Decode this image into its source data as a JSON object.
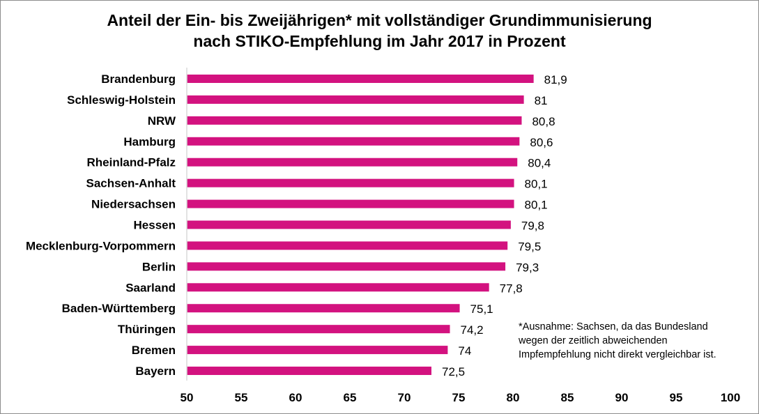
{
  "chart_data": {
    "type": "bar",
    "orientation": "horizontal",
    "title_lines": [
      "Anteil der Ein- bis Zweijährigen* mit vollständiger Grundimmunisierung",
      "nach STIKO-Empfehlung im Jahr 2017 in Prozent"
    ],
    "categories": [
      "Brandenburg",
      "Schleswig-Holstein",
      "NRW",
      "Hamburg",
      "Rheinland-Pfalz",
      "Sachsen-Anhalt",
      "Niedersachsen",
      "Hessen",
      "Mecklenburg-Vorpommern",
      "Berlin",
      "Saarland",
      "Baden-Württemberg",
      "Thüringen",
      "Bremen",
      "Bayern"
    ],
    "values": [
      81.9,
      81,
      80.8,
      80.6,
      80.4,
      80.1,
      80.1,
      79.8,
      79.5,
      79.3,
      77.8,
      75.1,
      74.2,
      74,
      72.5
    ],
    "value_labels": [
      "81,9",
      "81",
      "80,8",
      "80,6",
      "80,4",
      "80,1",
      "80,1",
      "79,8",
      "79,5",
      "79,3",
      "77,8",
      "75,1",
      "74,2",
      "74",
      "72,5"
    ],
    "xlim": [
      50,
      100
    ],
    "x_ticks": [
      "50",
      "55",
      "60",
      "65",
      "70",
      "75",
      "80",
      "85",
      "90",
      "95",
      "100"
    ],
    "xlabel": "",
    "ylabel": "",
    "grid": false,
    "legend": "none",
    "bar_color": "#d3127f",
    "footnote_lines": [
      "*Ausnahme: Sachsen, da das Bundesland",
      "wegen der zeitlich abweichenden",
      "Impfempfehlung nicht direkt vergleichbar ist."
    ]
  }
}
